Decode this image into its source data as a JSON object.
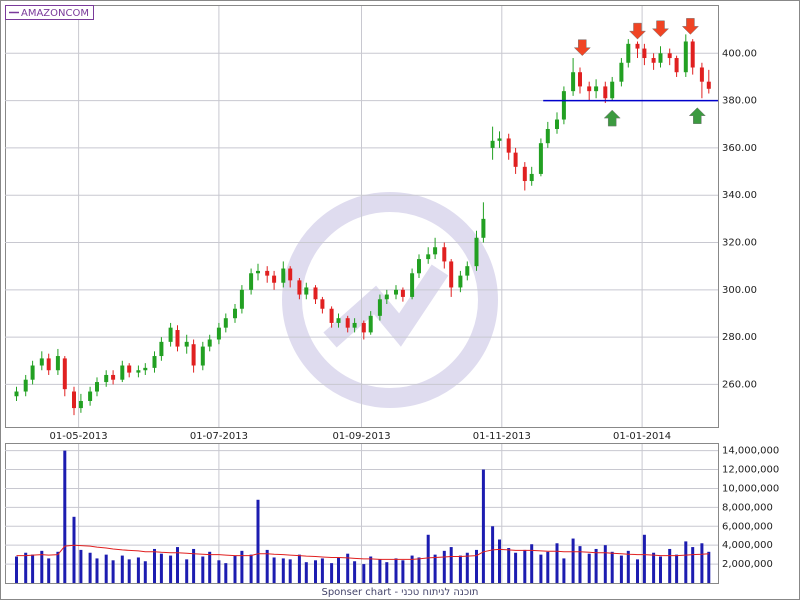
{
  "chart_data": [
    {
      "type": "candlestick",
      "legend": "AMAZONCOM",
      "legend_color": "#7a3a9a",
      "x": [
        "2013-04-04",
        "2013-04-08",
        "2013-04-11",
        "2013-04-15",
        "2013-04-18",
        "2013-04-22",
        "2013-04-25",
        "2013-04-29",
        "2013-05-02",
        "2013-05-06",
        "2013-05-09",
        "2013-05-13",
        "2013-05-16",
        "2013-05-20",
        "2013-05-23",
        "2013-05-27",
        "2013-05-30",
        "2013-06-03",
        "2013-06-06",
        "2013-06-10",
        "2013-06-13",
        "2013-06-17",
        "2013-06-20",
        "2013-06-24",
        "2013-06-27",
        "2013-07-01",
        "2013-07-04",
        "2013-07-08",
        "2013-07-11",
        "2013-07-15",
        "2013-07-18",
        "2013-07-22",
        "2013-07-25",
        "2013-07-29",
        "2013-08-01",
        "2013-08-05",
        "2013-08-08",
        "2013-08-12",
        "2013-08-15",
        "2013-08-19",
        "2013-08-22",
        "2013-08-26",
        "2013-08-29",
        "2013-09-02",
        "2013-09-05",
        "2013-09-09",
        "2013-09-12",
        "2013-09-16",
        "2013-09-19",
        "2013-09-23",
        "2013-09-26",
        "2013-09-30",
        "2013-10-03",
        "2013-10-07",
        "2013-10-10",
        "2013-10-14",
        "2013-10-17",
        "2013-10-21",
        "2013-10-24",
        "2013-10-28",
        "2013-10-31",
        "2013-11-04",
        "2013-11-07",
        "2013-11-11",
        "2013-11-14",
        "2013-11-18",
        "2013-11-21",
        "2013-11-25",
        "2013-11-28",
        "2013-12-02",
        "2013-12-05",
        "2013-12-09",
        "2013-12-12",
        "2013-12-16",
        "2013-12-19",
        "2013-12-23",
        "2013-12-26",
        "2013-12-30",
        "2014-01-02",
        "2014-01-06",
        "2014-01-09",
        "2014-01-13",
        "2014-01-16",
        "2014-01-20",
        "2014-01-23",
        "2014-01-27",
        "2014-01-30"
      ],
      "open": [
        255,
        257,
        262,
        268,
        271,
        266,
        271,
        257,
        250,
        253,
        257,
        261,
        264,
        262,
        268,
        265,
        266,
        267,
        272,
        278,
        283,
        276,
        277,
        268,
        276,
        279,
        284,
        288,
        292,
        300,
        307,
        308,
        306,
        303,
        309,
        304,
        298,
        301,
        296,
        292,
        286,
        288,
        284,
        286,
        282,
        289,
        296,
        298,
        300,
        297,
        307,
        313,
        315,
        318,
        312,
        301,
        306,
        310,
        322,
        360,
        363,
        364,
        358,
        352,
        346,
        349,
        362,
        368,
        372,
        384,
        392,
        386,
        384,
        386,
        381,
        388,
        396,
        404,
        402,
        398,
        396,
        400,
        398,
        392,
        405,
        394,
        388
      ],
      "high": [
        259,
        264,
        270,
        274,
        273,
        275,
        272,
        259,
        256,
        259,
        263,
        266,
        266,
        270,
        269,
        268,
        269,
        274,
        280,
        286,
        285,
        281,
        279,
        278,
        281,
        286,
        290,
        294,
        302,
        309,
        311,
        310,
        308,
        312,
        310,
        305,
        303,
        302,
        297,
        293,
        290,
        289,
        288,
        287,
        291,
        298,
        300,
        302,
        301,
        309,
        315,
        318,
        322,
        320,
        313,
        308,
        312,
        325,
        337,
        369,
        367,
        366,
        360,
        354,
        352,
        364,
        371,
        375,
        386,
        398,
        394,
        388,
        389,
        388,
        390,
        398,
        406,
        405,
        404,
        400,
        403,
        402,
        399,
        408,
        406,
        396,
        393
      ],
      "low": [
        253,
        255,
        260,
        266,
        264,
        264,
        255,
        247,
        248,
        251,
        255,
        259,
        260,
        261,
        263,
        263,
        264,
        265,
        270,
        276,
        274,
        273,
        265,
        266,
        274,
        277,
        282,
        286,
        290,
        298,
        304,
        303,
        300,
        301,
        301,
        296,
        296,
        294,
        290,
        284,
        284,
        282,
        282,
        279,
        281,
        287,
        294,
        296,
        295,
        296,
        305,
        311,
        313,
        309,
        297,
        299,
        304,
        308,
        320,
        355,
        360,
        355,
        349,
        342,
        344,
        348,
        360,
        366,
        370,
        382,
        383,
        380,
        381,
        379,
        380,
        386,
        394,
        398,
        395,
        393,
        394,
        395,
        390,
        390,
        391,
        381,
        383
      ],
      "close": [
        257,
        262,
        268,
        271,
        266,
        272,
        258,
        250,
        253,
        257,
        261,
        264,
        262,
        268,
        265,
        266,
        267,
        272,
        278,
        284,
        276,
        278,
        268,
        276,
        279,
        284,
        288,
        292,
        300,
        307,
        308,
        306,
        303,
        309,
        304,
        298,
        301,
        296,
        292,
        286,
        288,
        284,
        286,
        282,
        289,
        296,
        298,
        300,
        297,
        307,
        313,
        315,
        318,
        312,
        301,
        306,
        310,
        322,
        330,
        363,
        364,
        358,
        352,
        346,
        349,
        362,
        368,
        372,
        384,
        392,
        386,
        384,
        386,
        381,
        388,
        396,
        404,
        402,
        398,
        396,
        400,
        398,
        392,
        405,
        394,
        388,
        385
      ],
      "up_color": "#22a022",
      "down_color": "#e02020",
      "xlim": [
        "2013-03-30",
        "2014-02-03"
      ],
      "xticks": [
        {
          "value": "2013-05-01",
          "label": "01-05-2013"
        },
        {
          "value": "2013-07-01",
          "label": "01-07-2013"
        },
        {
          "value": "2013-09-01",
          "label": "01-09-2013"
        },
        {
          "value": "2013-11-01",
          "label": "01-11-2013"
        },
        {
          "value": "2014-01-01",
          "label": "01-01-2014"
        }
      ],
      "ylim": [
        242,
        420
      ],
      "yticks": [
        {
          "value": 260,
          "label": "260.00"
        },
        {
          "value": 280,
          "label": "280.00"
        },
        {
          "value": 300,
          "label": "300.00"
        },
        {
          "value": 320,
          "label": "320.00"
        },
        {
          "value": 340,
          "label": "340.00"
        },
        {
          "value": 360,
          "label": "360.00"
        },
        {
          "value": 380,
          "label": "380.00"
        },
        {
          "value": 400,
          "label": "400.00"
        }
      ],
      "grid": true,
      "support": {
        "value": 380,
        "from": "2013-11-19",
        "to": "2014-02-03",
        "color": "#0000cc"
      },
      "signals": [
        {
          "x": "2013-12-06",
          "y": 399,
          "direction": "down"
        },
        {
          "x": "2013-12-30",
          "y": 406,
          "direction": "down"
        },
        {
          "x": "2014-01-09",
          "y": 407,
          "direction": "down"
        },
        {
          "x": "2014-01-22",
          "y": 408,
          "direction": "down"
        },
        {
          "x": "2013-12-19",
          "y": 376,
          "direction": "up"
        },
        {
          "x": "2014-01-25",
          "y": 377,
          "direction": "up"
        }
      ],
      "signal_colors": {
        "down": "#f04424",
        "up": "#3c9a40"
      }
    },
    {
      "type": "bar",
      "x": [
        "2013-04-04",
        "2013-04-08",
        "2013-04-11",
        "2013-04-15",
        "2013-04-18",
        "2013-04-22",
        "2013-04-25",
        "2013-04-29",
        "2013-05-02",
        "2013-05-06",
        "2013-05-09",
        "2013-05-13",
        "2013-05-16",
        "2013-05-20",
        "2013-05-23",
        "2013-05-27",
        "2013-05-30",
        "2013-06-03",
        "2013-06-06",
        "2013-06-10",
        "2013-06-13",
        "2013-06-17",
        "2013-06-20",
        "2013-06-24",
        "2013-06-27",
        "2013-07-01",
        "2013-07-04",
        "2013-07-08",
        "2013-07-11",
        "2013-07-15",
        "2013-07-18",
        "2013-07-22",
        "2013-07-25",
        "2013-07-29",
        "2013-08-01",
        "2013-08-05",
        "2013-08-08",
        "2013-08-12",
        "2013-08-15",
        "2013-08-19",
        "2013-08-22",
        "2013-08-26",
        "2013-08-29",
        "2013-09-02",
        "2013-09-05",
        "2013-09-09",
        "2013-09-12",
        "2013-09-16",
        "2013-09-19",
        "2013-09-23",
        "2013-09-26",
        "2013-09-30",
        "2013-10-03",
        "2013-10-07",
        "2013-10-10",
        "2013-10-14",
        "2013-10-17",
        "2013-10-21",
        "2013-10-24",
        "2013-10-28",
        "2013-10-31",
        "2013-11-04",
        "2013-11-07",
        "2013-11-11",
        "2013-11-14",
        "2013-11-18",
        "2013-11-21",
        "2013-11-25",
        "2013-11-28",
        "2013-12-02",
        "2013-12-05",
        "2013-12-09",
        "2013-12-12",
        "2013-12-16",
        "2013-12-19",
        "2013-12-23",
        "2013-12-26",
        "2013-12-30",
        "2014-01-02",
        "2014-01-06",
        "2014-01-09",
        "2014-01-13",
        "2014-01-16",
        "2014-01-20",
        "2014-01-23",
        "2014-01-27",
        "2014-01-30"
      ],
      "values": [
        2800000,
        3200000,
        3000000,
        3400000,
        2600000,
        3300000,
        14000000,
        7000000,
        3500000,
        3200000,
        2600000,
        3000000,
        2400000,
        2900000,
        2500000,
        2700000,
        2300000,
        3600000,
        3100000,
        2900000,
        3800000,
        2500000,
        3600000,
        2800000,
        3300000,
        2400000,
        2100000,
        2900000,
        3400000,
        3000000,
        8800000,
        3500000,
        2700000,
        2600000,
        2500000,
        3000000,
        2200000,
        2400000,
        2600000,
        2100000,
        2700000,
        3100000,
        2300000,
        2000000,
        2800000,
        2500000,
        2200000,
        2600000,
        2400000,
        2900000,
        2700000,
        5100000,
        3000000,
        3400000,
        3800000,
        2900000,
        3200000,
        3500000,
        12000000,
        6000000,
        4600000,
        3700000,
        3200000,
        3500000,
        4100000,
        3000000,
        3300000,
        4200000,
        2600000,
        4700000,
        3900000,
        3100000,
        3600000,
        4000000,
        3300000,
        2900000,
        3400000,
        2500000,
        5100000,
        3200000,
        2800000,
        3600000,
        3000000,
        4400000,
        3800000,
        4200000,
        3300000
      ],
      "color": "#1c1cb0",
      "average": [
        2900000,
        2900000,
        2950000,
        3000000,
        2950000,
        3000000,
        3900000,
        4000000,
        3950000,
        3900000,
        3800000,
        3700000,
        3600000,
        3500000,
        3450000,
        3400000,
        3300000,
        3300000,
        3250000,
        3200000,
        3200000,
        3150000,
        3100000,
        3050000,
        3000000,
        3000000,
        2950000,
        2900000,
        2900000,
        2900000,
        3100000,
        3100000,
        3050000,
        3000000,
        2950000,
        2900000,
        2850000,
        2800000,
        2750000,
        2700000,
        2700000,
        2650000,
        2600000,
        2550000,
        2550000,
        2500000,
        2500000,
        2500000,
        2500000,
        2500000,
        2550000,
        2650000,
        2700000,
        2750000,
        2800000,
        2800000,
        2850000,
        2900000,
        3300000,
        3500000,
        3550000,
        3500000,
        3450000,
        3450000,
        3450000,
        3400000,
        3350000,
        3350000,
        3300000,
        3300000,
        3300000,
        3250000,
        3200000,
        3200000,
        3150000,
        3100000,
        3050000,
        3000000,
        3000000,
        2950000,
        2900000,
        2900000,
        2900000,
        2950000,
        3000000,
        3050000,
        3100000
      ],
      "average_color": "#e02020",
      "xlim": [
        "2013-03-30",
        "2014-02-03"
      ],
      "xticks": [
        "2013-05-01",
        "2013-07-01",
        "2013-09-01",
        "2013-11-01",
        "2014-01-01"
      ],
      "ylim": [
        0,
        14700000
      ],
      "yticks": [
        {
          "value": 2000000,
          "label": "2,000,000"
        },
        {
          "value": 4000000,
          "label": "4,000,000"
        },
        {
          "value": 6000000,
          "label": "6,000,000"
        },
        {
          "value": 8000000,
          "label": "8,000,000"
        },
        {
          "value": 10000000,
          "label": "10,000,000"
        },
        {
          "value": 12000000,
          "label": "12,000,000"
        },
        {
          "value": 14000000,
          "label": "14,000,000"
        }
      ],
      "grid": true
    }
  ],
  "footer": "Sponser chart - תוכנה לניתוח טכני"
}
